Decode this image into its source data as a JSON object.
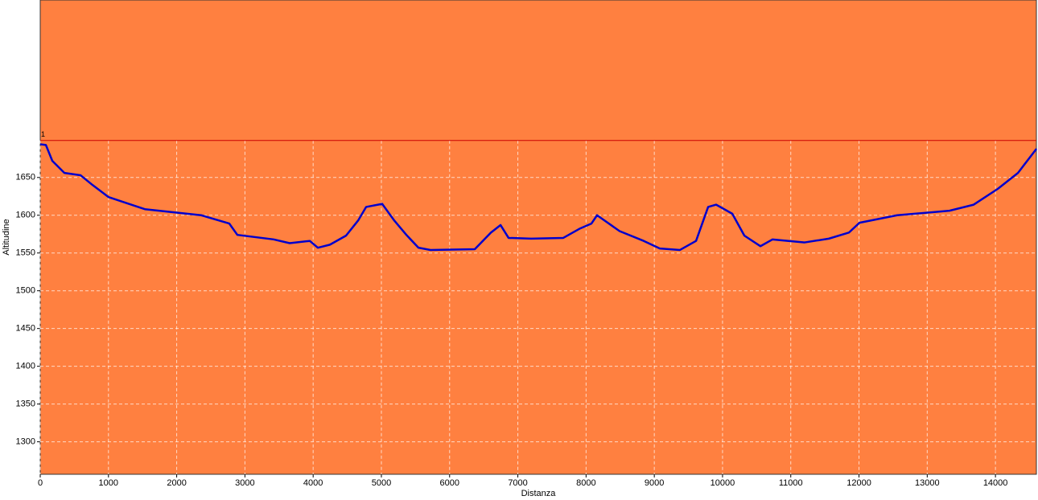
{
  "chart_data": {
    "type": "line",
    "x_label": "Distanza",
    "y_label": "Altitudine",
    "x": [
      0,
      83,
      177,
      354,
      590,
      767,
      1002,
      1533,
      2359,
      2771,
      2889,
      3420,
      3656,
      3951,
      4069,
      4246,
      4482,
      4659,
      4777,
      5012,
      5189,
      5366,
      5543,
      5720,
      6369,
      6605,
      6746,
      6864,
      7194,
      7666,
      7902,
      8079,
      8161,
      8491,
      8845,
      9081,
      9376,
      9612,
      9789,
      9907,
      10143,
      10320,
      10556,
      10733,
      11204,
      11558,
      11852,
      12006,
      12560,
      13327,
      13681,
      14035,
      14330,
      14601
    ],
    "series": [
      {
        "name": "Altitudine",
        "color": "#0000cc",
        "values": [
          1694,
          1693,
          1672,
          1656,
          1653,
          1640,
          1624,
          1608,
          1600,
          1589,
          1574,
          1568,
          1563,
          1566,
          1557,
          1561,
          1573,
          1593,
          1611,
          1615,
          1593,
          1574,
          1557,
          1554,
          1555,
          1577,
          1587,
          1570,
          1569,
          1570,
          1582,
          1589,
          1600,
          1579,
          1566,
          1556,
          1554,
          1566,
          1611,
          1614,
          1602,
          1573,
          1559,
          1568,
          1564,
          1569,
          1577,
          1590,
          1600,
          1606,
          1614,
          1635,
          1656,
          1688
        ]
      }
    ],
    "reference_line": {
      "label": "1",
      "value": 1699,
      "color": "#cc0000"
    },
    "background": "#ff8040",
    "xlim": [
      0,
      14600
    ],
    "xticks": [
      0,
      1000,
      2000,
      3000,
      4000,
      5000,
      6000,
      7000,
      8000,
      9000,
      10000,
      11000,
      12000,
      13000,
      14000
    ],
    "ylim": [
      1257,
      1885
    ],
    "yticks": [
      1300,
      1350,
      1400,
      1450,
      1500,
      1550,
      1600,
      1650
    ],
    "grid": true
  }
}
